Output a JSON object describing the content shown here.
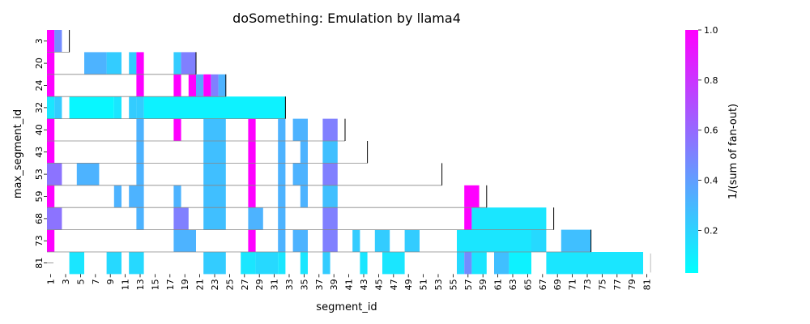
{
  "chart_data": {
    "type": "heatmap",
    "title": "doSomething: Emulation by llama4",
    "xlabel": "segment_id",
    "ylabel": "max_segment_id",
    "x_ticks": [
      "1",
      "3",
      "5",
      "7",
      "9",
      "11",
      "13",
      "15",
      "17",
      "19",
      "21",
      "23",
      "25",
      "27",
      "29",
      "31",
      "33",
      "35",
      "37",
      "39",
      "41",
      "43",
      "45",
      "47",
      "49",
      "51",
      "53",
      "55",
      "57",
      "59",
      "61",
      "63",
      "65",
      "67",
      "69",
      "71",
      "73",
      "75",
      "77",
      "79",
      "81"
    ],
    "y_ticks": [
      "3",
      "20",
      "24",
      "32",
      "40",
      "43",
      "53",
      "59",
      "68",
      "73",
      "81"
    ],
    "colorbar": {
      "label": "1/(sum of fan-out)",
      "ticks": [
        0.2,
        0.4,
        0.6,
        0.8,
        1.0
      ],
      "range": [
        0.03,
        1.0
      ],
      "colormap": "cool",
      "low_color": "#00ffff",
      "high_color": "#ff00ff"
    },
    "rows": [
      {
        "max": 3,
        "cells": [
          [
            1,
            1,
            1.0
          ],
          [
            2,
            2,
            0.45
          ]
        ]
      },
      {
        "max": 20,
        "cells": [
          [
            1,
            1,
            1.0
          ],
          [
            6,
            8,
            0.3
          ],
          [
            9,
            10,
            0.2
          ],
          [
            12,
            12,
            0.2
          ],
          [
            13,
            13,
            1.0
          ],
          [
            18,
            18,
            0.2
          ],
          [
            19,
            20,
            0.5
          ]
        ]
      },
      {
        "max": 24,
        "cells": [
          [
            1,
            1,
            1.0
          ],
          [
            13,
            13,
            1.0
          ],
          [
            18,
            18,
            1.0
          ],
          [
            20,
            20,
            1.0
          ],
          [
            21,
            21,
            0.35
          ],
          [
            22,
            22,
            1.0
          ],
          [
            23,
            23,
            0.5
          ],
          [
            24,
            24,
            0.3
          ]
        ]
      },
      {
        "max": 32,
        "cells": [
          [
            1,
            1,
            0.1
          ],
          [
            2,
            2,
            0.2
          ],
          [
            4,
            9,
            0.03
          ],
          [
            10,
            10,
            0.1
          ],
          [
            12,
            12,
            0.2
          ],
          [
            13,
            13,
            0.2
          ],
          [
            14,
            32,
            0.05
          ]
        ]
      },
      {
        "max": 40,
        "cells": [
          [
            1,
            1,
            1.0
          ],
          [
            13,
            13,
            0.3
          ],
          [
            18,
            18,
            1.0
          ],
          [
            22,
            24,
            0.25
          ],
          [
            28,
            28,
            1.0
          ],
          [
            32,
            32,
            0.3
          ],
          [
            34,
            35,
            0.3
          ],
          [
            38,
            39,
            0.5
          ]
        ]
      },
      {
        "max": 43,
        "cells": [
          [
            1,
            1,
            1.0
          ],
          [
            13,
            13,
            0.3
          ],
          [
            22,
            24,
            0.25
          ],
          [
            28,
            28,
            1.0
          ],
          [
            32,
            32,
            0.3
          ],
          [
            35,
            35,
            0.3
          ],
          [
            38,
            39,
            0.25
          ]
        ]
      },
      {
        "max": 53,
        "cells": [
          [
            1,
            2,
            0.55
          ],
          [
            5,
            7,
            0.3
          ],
          [
            13,
            13,
            0.3
          ],
          [
            22,
            24,
            0.25
          ],
          [
            28,
            28,
            1.0
          ],
          [
            32,
            32,
            0.3
          ],
          [
            34,
            35,
            0.3
          ],
          [
            38,
            39,
            0.5
          ]
        ]
      },
      {
        "max": 59,
        "cells": [
          [
            1,
            1,
            1.0
          ],
          [
            10,
            10,
            0.3
          ],
          [
            12,
            13,
            0.3
          ],
          [
            18,
            18,
            0.3
          ],
          [
            22,
            24,
            0.25
          ],
          [
            28,
            28,
            1.0
          ],
          [
            32,
            32,
            0.3
          ],
          [
            35,
            35,
            0.3
          ],
          [
            38,
            39,
            0.25
          ],
          [
            57,
            58,
            1.0
          ]
        ]
      },
      {
        "max": 68,
        "cells": [
          [
            1,
            2,
            0.55
          ],
          [
            13,
            13,
            0.3
          ],
          [
            18,
            19,
            0.5
          ],
          [
            22,
            24,
            0.25
          ],
          [
            28,
            29,
            0.3
          ],
          [
            32,
            32,
            0.3
          ],
          [
            38,
            39,
            0.5
          ],
          [
            57,
            57,
            1.0
          ],
          [
            58,
            67,
            0.1
          ]
        ]
      },
      {
        "max": 73,
        "cells": [
          [
            1,
            1,
            1.0
          ],
          [
            18,
            20,
            0.3
          ],
          [
            28,
            28,
            1.0
          ],
          [
            32,
            32,
            0.3
          ],
          [
            34,
            35,
            0.3
          ],
          [
            38,
            39,
            0.5
          ],
          [
            42,
            42,
            0.2
          ],
          [
            45,
            46,
            0.2
          ],
          [
            49,
            50,
            0.2
          ],
          [
            56,
            65,
            0.1
          ],
          [
            66,
            67,
            0.15
          ],
          [
            70,
            73,
            0.25
          ]
        ]
      },
      {
        "max": 81,
        "cells": [
          [
            4,
            5,
            0.1
          ],
          [
            9,
            10,
            0.15
          ],
          [
            12,
            13,
            0.15
          ],
          [
            22,
            24,
            0.2
          ],
          [
            27,
            28,
            0.1
          ],
          [
            29,
            31,
            0.15
          ],
          [
            32,
            32,
            0.1
          ],
          [
            35,
            35,
            0.1
          ],
          [
            38,
            38,
            0.2
          ],
          [
            43,
            43,
            0.1
          ],
          [
            46,
            48,
            0.1
          ],
          [
            56,
            56,
            0.15
          ],
          [
            57,
            57,
            0.45
          ],
          [
            58,
            59,
            0.1
          ],
          [
            61,
            62,
            0.25
          ],
          [
            63,
            65,
            0.05
          ],
          [
            68,
            80,
            0.1
          ]
        ]
      }
    ]
  }
}
